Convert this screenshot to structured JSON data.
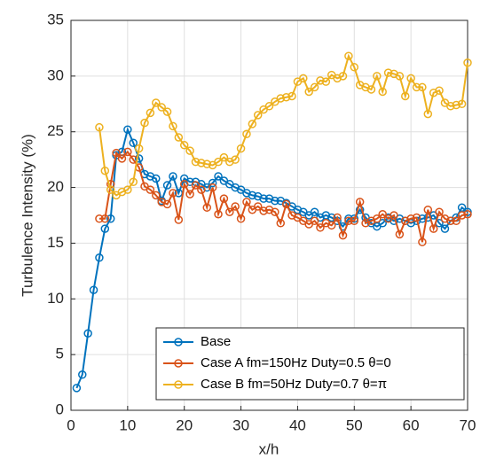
{
  "chart_data": {
    "type": "line",
    "xlabel": "x/h",
    "ylabel": "Turbulence Intensity (%)",
    "x": [
      1,
      2,
      3,
      4,
      5,
      6,
      7,
      8,
      9,
      10,
      11,
      12,
      13,
      14,
      15,
      16,
      17,
      18,
      19,
      20,
      21,
      22,
      23,
      24,
      25,
      26,
      27,
      28,
      29,
      30,
      31,
      32,
      33,
      34,
      35,
      36,
      37,
      38,
      39,
      40,
      41,
      42,
      43,
      44,
      45,
      46,
      47,
      48,
      49,
      50,
      51,
      52,
      53,
      54,
      55,
      56,
      57,
      58,
      59,
      60,
      61,
      62,
      63,
      64,
      65,
      66,
      67,
      68,
      69,
      70
    ],
    "series": [
      {
        "name": "Base",
        "color": "#0072BD",
        "values": [
          2.0,
          3.2,
          6.9,
          10.8,
          13.7,
          16.3,
          17.2,
          22.9,
          23.2,
          25.2,
          24.0,
          22.6,
          21.2,
          21.0,
          20.8,
          18.8,
          20.2,
          21.0,
          19.5,
          20.8,
          20.5,
          20.5,
          20.3,
          20.0,
          20.4,
          21.0,
          20.6,
          20.3,
          20.0,
          19.8,
          19.5,
          19.3,
          19.2,
          19.0,
          19.0,
          18.8,
          18.8,
          18.6,
          18.3,
          18.0,
          17.8,
          17.5,
          17.8,
          17.3,
          17.5,
          17.3,
          17.0,
          16.5,
          17.2,
          17.2,
          18.0,
          17.3,
          16.8,
          16.5,
          16.8,
          17.3,
          17.0,
          17.2,
          17.0,
          16.8,
          17.0,
          17.2,
          17.3,
          17.5,
          16.8,
          16.3,
          17.0,
          17.3,
          18.2,
          17.8
        ]
      },
      {
        "name": "Case A fm=150Hz Duty=0.5 θ=0",
        "color": "#D95319",
        "values": [
          null,
          null,
          null,
          null,
          17.2,
          17.2,
          20.3,
          23.1,
          22.6,
          23.2,
          22.5,
          21.8,
          20.1,
          19.8,
          19.3,
          18.7,
          18.5,
          19.5,
          17.1,
          20.3,
          19.4,
          20.2,
          19.8,
          18.2,
          20.0,
          17.6,
          19.0,
          17.8,
          18.3,
          17.2,
          18.7,
          18.0,
          18.3,
          17.9,
          18.0,
          17.8,
          16.8,
          18.5,
          17.5,
          17.3,
          17.0,
          16.7,
          17.0,
          16.4,
          16.8,
          16.6,
          17.3,
          15.7,
          17.0,
          17.0,
          18.7,
          16.8,
          17.0,
          17.2,
          17.6,
          17.2,
          17.5,
          15.8,
          17.0,
          17.2,
          17.3,
          15.1,
          18.0,
          16.3,
          17.8,
          17.2,
          17.0,
          17.0,
          17.5,
          17.6
        ]
      },
      {
        "name": "Case B fm=50Hz Duty=0.7 θ=π",
        "color": "#EDB120",
        "values": [
          null,
          null,
          null,
          null,
          25.4,
          21.5,
          19.8,
          19.3,
          19.6,
          19.8,
          20.5,
          23.5,
          25.8,
          26.7,
          27.6,
          27.2,
          26.8,
          25.5,
          24.5,
          23.8,
          23.3,
          22.3,
          22.2,
          22.1,
          22.0,
          22.3,
          22.7,
          22.3,
          22.5,
          23.5,
          24.8,
          25.7,
          26.5,
          27.0,
          27.3,
          27.7,
          28.0,
          28.1,
          28.2,
          29.5,
          29.8,
          28.6,
          29.0,
          29.6,
          29.5,
          30.1,
          29.8,
          30.0,
          31.8,
          30.8,
          29.2,
          29.0,
          28.8,
          30.0,
          28.6,
          30.3,
          30.2,
          30.0,
          28.2,
          29.8,
          29.0,
          29.0,
          26.6,
          28.5,
          28.7,
          27.6,
          27.3,
          27.4,
          27.5,
          31.2
        ]
      }
    ],
    "xlim": [
      0,
      70
    ],
    "xticks": [
      0,
      10,
      20,
      30,
      40,
      50,
      60,
      70
    ],
    "ylim": [
      0,
      35
    ],
    "yticks": [
      0,
      5,
      10,
      15,
      20,
      25,
      30,
      35
    ],
    "grid": true,
    "legend": "lower right"
  }
}
